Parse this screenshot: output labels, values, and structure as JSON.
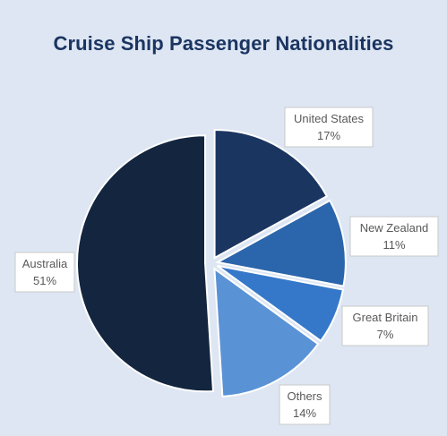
{
  "chart_data": {
    "type": "pie",
    "title": "Cruise Ship Passenger Nationalities",
    "exploded": true,
    "slices": [
      {
        "label": "United States",
        "value": 17,
        "display": "17%",
        "color": "#1b3561"
      },
      {
        "label": "New Zealand",
        "value": 11,
        "display": "11%",
        "color": "#2b65ab"
      },
      {
        "label": "Great Britain",
        "value": 7,
        "display": "7%",
        "color": "#3578c9"
      },
      {
        "label": "Others",
        "value": 14,
        "display": "14%",
        "color": "#5a92d6"
      },
      {
        "label": "Australia",
        "value": 51,
        "display": "51%",
        "color": "#13253f"
      }
    ]
  }
}
